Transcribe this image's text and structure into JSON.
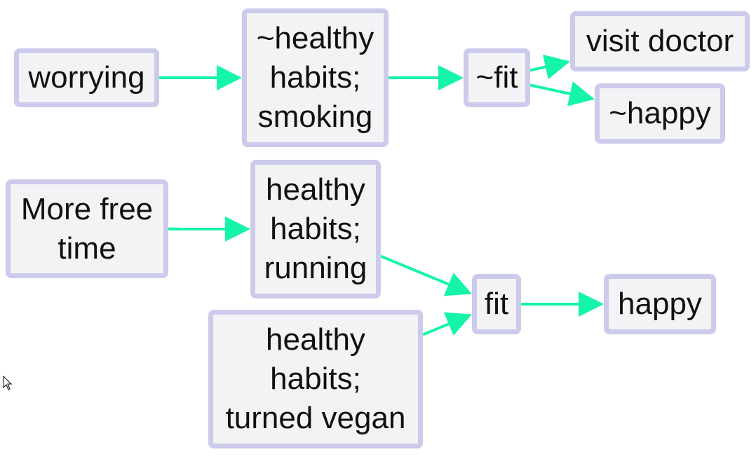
{
  "diagram": {
    "colors": {
      "edge": "#14f5a7",
      "node_fill": "#f3f3f5",
      "node_border": "#cccbeb",
      "text": "#111111"
    },
    "nodes": {
      "worrying": {
        "lines": [
          "worrying"
        ]
      },
      "not_healthy_smoking": {
        "lines": [
          "~healthy",
          "habits;",
          "smoking"
        ]
      },
      "not_fit": {
        "lines": [
          "~fit"
        ]
      },
      "visit_doctor": {
        "lines": [
          "visit doctor"
        ]
      },
      "not_happy": {
        "lines": [
          "~happy"
        ]
      },
      "more_free_time": {
        "lines": [
          "More free",
          "time"
        ]
      },
      "healthy_running": {
        "lines": [
          "healthy",
          "habits;",
          "running"
        ]
      },
      "healthy_vegan": {
        "lines": [
          "healthy",
          "habits;",
          "turned vegan"
        ]
      },
      "fit": {
        "lines": [
          "fit"
        ]
      },
      "happy": {
        "lines": [
          "happy"
        ]
      }
    },
    "edges": [
      {
        "from": "worrying",
        "to": "not_healthy_smoking"
      },
      {
        "from": "not_healthy_smoking",
        "to": "not_fit"
      },
      {
        "from": "not_fit",
        "to": "visit_doctor"
      },
      {
        "from": "not_fit",
        "to": "not_happy"
      },
      {
        "from": "more_free_time",
        "to": "healthy_running"
      },
      {
        "from": "healthy_running",
        "to": "fit"
      },
      {
        "from": "healthy_vegan",
        "to": "fit"
      },
      {
        "from": "fit",
        "to": "happy"
      }
    ]
  }
}
